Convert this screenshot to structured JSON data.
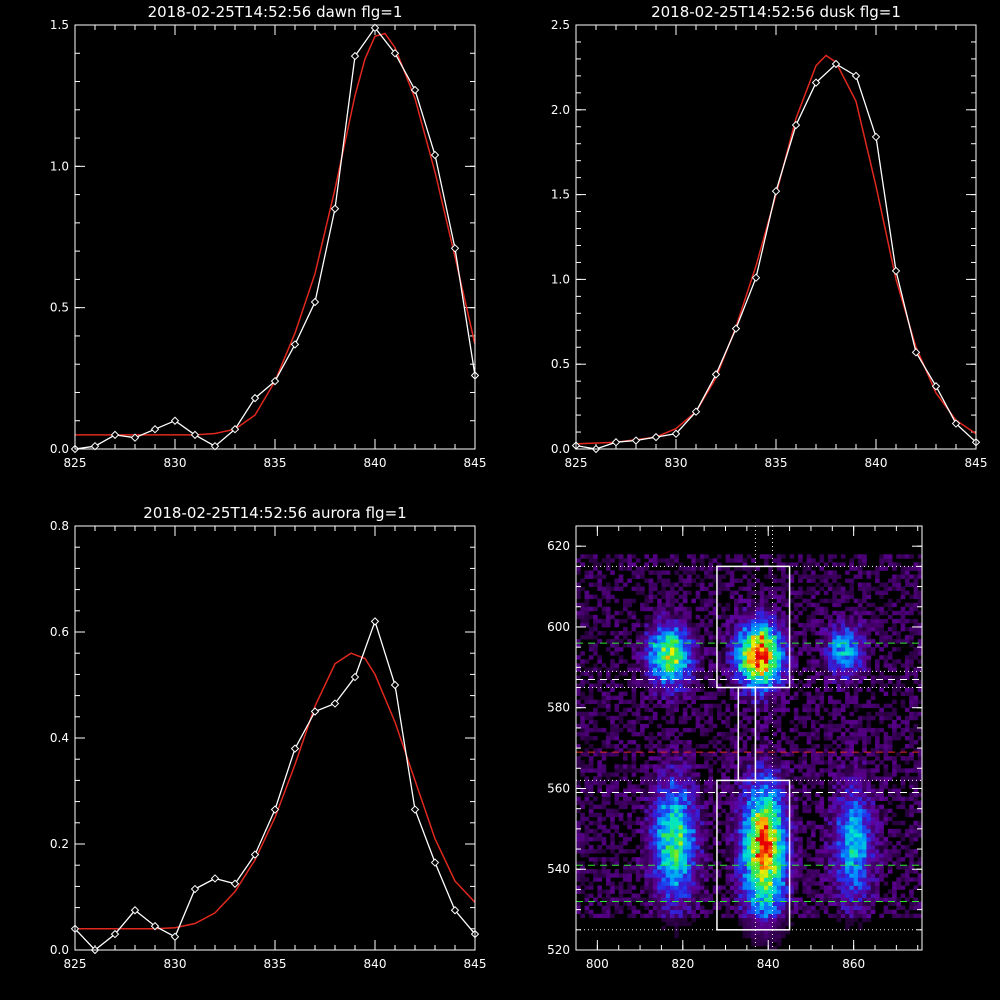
{
  "chart_data": [
    {
      "type": "line",
      "title": "2018-02-25T14:52:56 dawn flg=1",
      "xlim": [
        825,
        845
      ],
      "ylim": [
        0,
        1.5
      ],
      "xticks": [
        "825",
        "830",
        "835",
        "840",
        "845"
      ],
      "yticks": [
        "0.0",
        "0.5",
        "1.0",
        "1.5"
      ],
      "series": [
        {
          "x": [
            825,
            826,
            827,
            828,
            829,
            830,
            831,
            832,
            833,
            834,
            835,
            836,
            837,
            838,
            839,
            840,
            841,
            842,
            843,
            844,
            845
          ],
          "values": [
            0.0,
            0.01,
            0.05,
            0.04,
            0.07,
            0.1,
            0.05,
            0.01,
            0.07,
            0.18,
            0.24,
            0.37,
            0.52,
            0.85,
            1.39,
            1.49,
            1.4,
            1.27,
            1.04,
            0.71,
            0.26
          ],
          "color": "#ffffff",
          "markers": true
        },
        {
          "x": [
            825,
            827,
            829,
            831,
            832,
            833,
            834,
            835,
            836,
            837,
            838,
            839,
            839.5,
            840,
            840.5,
            841,
            842,
            843,
            844,
            845
          ],
          "values": [
            0.05,
            0.05,
            0.05,
            0.05,
            0.055,
            0.07,
            0.12,
            0.24,
            0.41,
            0.62,
            0.92,
            1.25,
            1.38,
            1.46,
            1.47,
            1.42,
            1.24,
            0.98,
            0.68,
            0.37
          ],
          "color": "#e0281e",
          "markers": false
        }
      ]
    },
    {
      "type": "line",
      "title": "2018-02-25T14:52:56 dusk flg=1",
      "xlim": [
        825,
        845
      ],
      "ylim": [
        0,
        2.5
      ],
      "xticks": [
        "825",
        "830",
        "835",
        "840",
        "845"
      ],
      "yticks": [
        "0.0",
        "0.5",
        "1.0",
        "1.5",
        "2.0",
        "2.5"
      ],
      "series": [
        {
          "x": [
            825,
            826,
            827,
            828,
            829,
            830,
            831,
            832,
            833,
            834,
            835,
            836,
            837,
            838,
            839,
            840,
            841,
            842,
            843,
            844,
            845
          ],
          "values": [
            0.02,
            0.0,
            0.04,
            0.05,
            0.07,
            0.09,
            0.22,
            0.44,
            0.71,
            1.01,
            1.52,
            1.91,
            2.16,
            2.27,
            2.2,
            1.84,
            1.05,
            0.57,
            0.37,
            0.15,
            0.04
          ],
          "color": "#ffffff",
          "markers": true
        },
        {
          "x": [
            825,
            827,
            829,
            830,
            831,
            832,
            833,
            834,
            835,
            836,
            837,
            837.5,
            838,
            839,
            840,
            841,
            842,
            843,
            844,
            845
          ],
          "values": [
            0.03,
            0.04,
            0.07,
            0.12,
            0.22,
            0.42,
            0.72,
            1.08,
            1.5,
            1.95,
            2.26,
            2.32,
            2.28,
            2.05,
            1.55,
            1.0,
            0.6,
            0.33,
            0.17,
            0.09
          ],
          "color": "#e0281e",
          "markers": false
        }
      ]
    },
    {
      "type": "line",
      "title": "2018-02-25T14:52:56 aurora flg=1",
      "xlim": [
        825,
        845
      ],
      "ylim": [
        0,
        0.8
      ],
      "xticks": [
        "825",
        "830",
        "835",
        "840",
        "845"
      ],
      "yticks": [
        "0.0",
        "0.2",
        "0.4",
        "0.6",
        "0.8"
      ],
      "series": [
        {
          "x": [
            825,
            826,
            827,
            828,
            829,
            830,
            831,
            832,
            833,
            834,
            835,
            836,
            837,
            838,
            839,
            840,
            841,
            842,
            843,
            844,
            845
          ],
          "values": [
            0.04,
            0.0,
            0.03,
            0.075,
            0.045,
            0.025,
            0.115,
            0.135,
            0.125,
            0.18,
            0.265,
            0.38,
            0.45,
            0.465,
            0.515,
            0.62,
            0.5,
            0.265,
            0.165,
            0.075,
            0.03
          ],
          "color": "#ffffff",
          "markers": true
        },
        {
          "x": [
            825,
            829,
            830,
            831,
            832,
            833,
            834,
            835,
            836,
            837,
            838,
            838.8,
            839.5,
            840,
            841,
            842,
            843,
            844,
            845
          ],
          "values": [
            0.04,
            0.04,
            0.042,
            0.05,
            0.07,
            0.11,
            0.17,
            0.25,
            0.35,
            0.46,
            0.54,
            0.56,
            0.55,
            0.52,
            0.43,
            0.32,
            0.21,
            0.13,
            0.09
          ],
          "color": "#e0281e",
          "markers": false
        }
      ]
    },
    {
      "type": "heatmap",
      "xlim": [
        795,
        876
      ],
      "ylim": [
        520,
        625
      ],
      "xticks": [
        "800",
        "820",
        "840",
        "860"
      ],
      "yticks": [
        "520",
        "540",
        "560",
        "580",
        "600",
        "620"
      ],
      "blobs": [
        {
          "x": 817,
          "y": 593,
          "sx": 3.5,
          "sy": 5,
          "amp": 0.72
        },
        {
          "x": 838,
          "y": 593,
          "sx": 3.5,
          "sy": 5.5,
          "amp": 1.0
        },
        {
          "x": 858,
          "y": 594,
          "sx": 3,
          "sy": 4.5,
          "amp": 0.45
        },
        {
          "x": 818,
          "y": 547,
          "sx": 3.5,
          "sy": 10,
          "amp": 0.62
        },
        {
          "x": 839,
          "y": 545,
          "sx": 3.5,
          "sy": 11,
          "amp": 0.9
        },
        {
          "x": 860,
          "y": 546,
          "sx": 3.2,
          "sy": 10,
          "amp": 0.45
        }
      ],
      "white_dotted_h": [
        615,
        589,
        585,
        562,
        525
      ],
      "white_dotted_v": [
        837,
        841
      ],
      "green_dashed_h": [
        596,
        541,
        532
      ],
      "white_dashed_h": [
        587,
        559
      ],
      "red_dashed_h": [
        569
      ],
      "box_top": {
        "x0": 828,
        "x1": 845,
        "y0": 585,
        "y1": 615
      },
      "box_bottom": {
        "x0": 828,
        "x1": 845,
        "y0": 525,
        "y1": 562
      },
      "box_stem": {
        "x0": 833,
        "x1": 837,
        "y0": 562,
        "y1": 585
      }
    }
  ]
}
